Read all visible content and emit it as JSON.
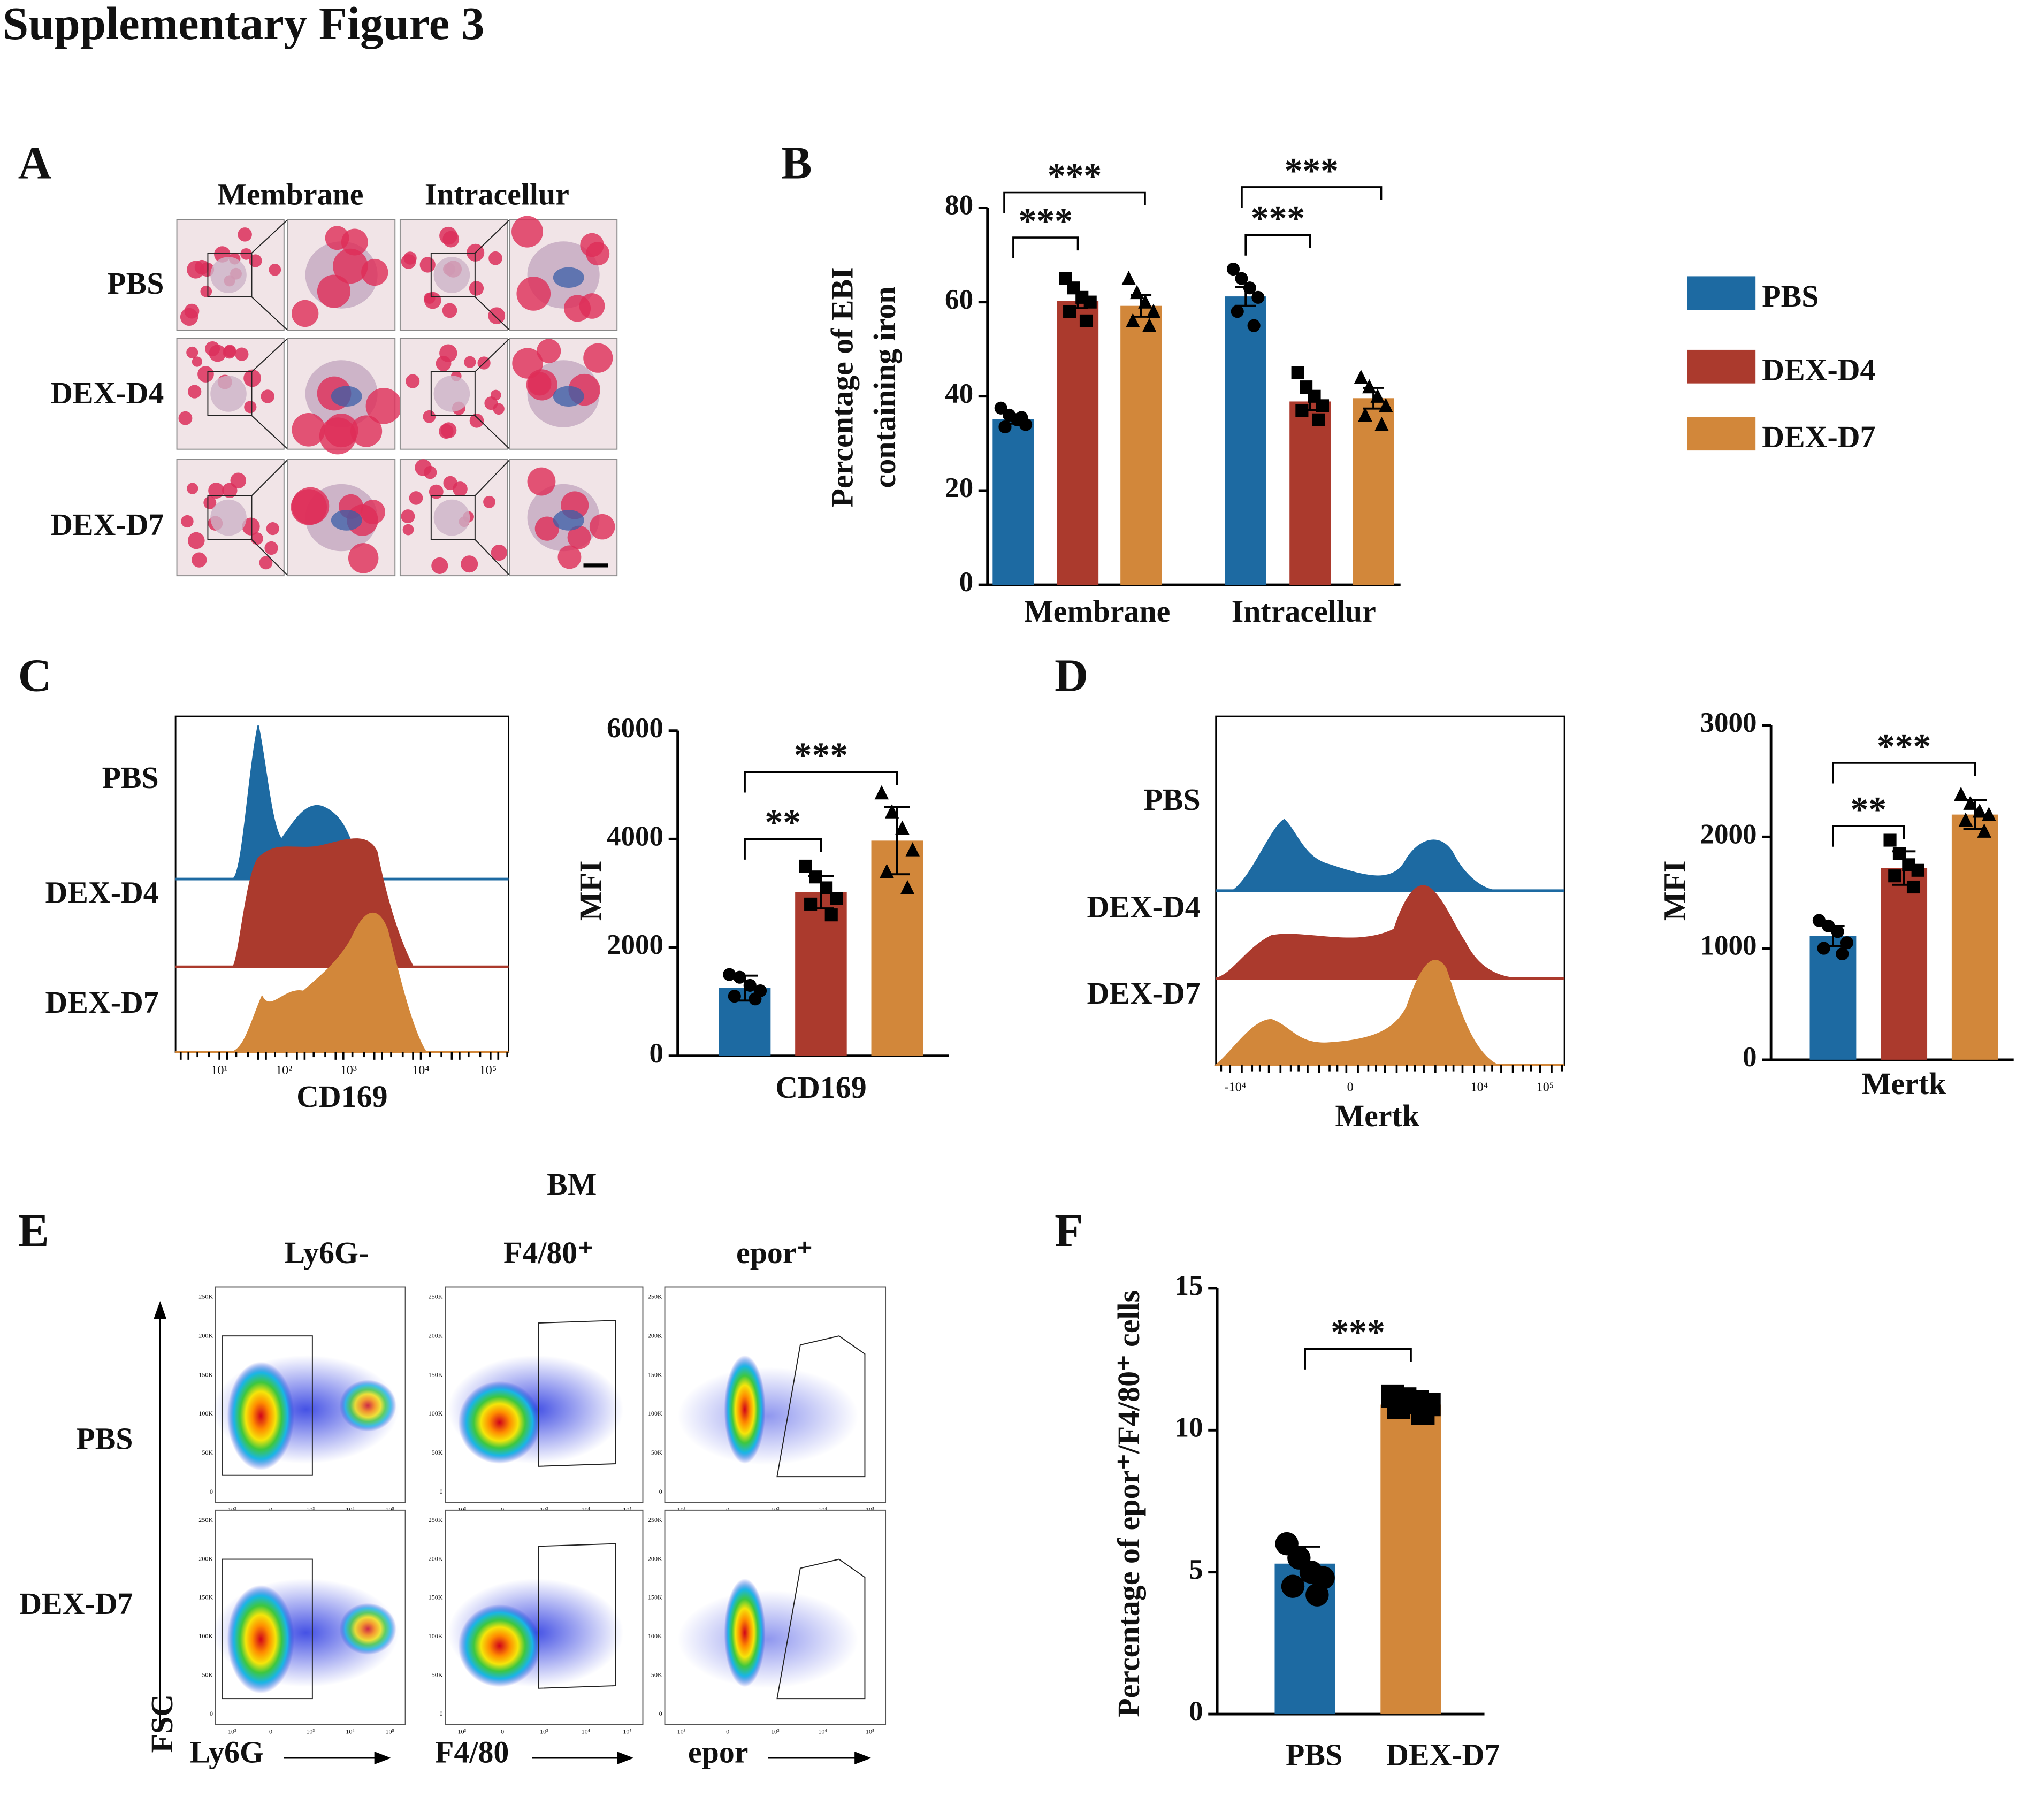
{
  "title": "Supplementary Figure 3",
  "panel_labels": [
    "A",
    "B",
    "C",
    "D",
    "E",
    "F"
  ],
  "panel_a": {
    "columns": [
      "Membrane",
      "Intracellur"
    ],
    "rows": [
      "PBS",
      "DEX-D4",
      "DEX-D7"
    ]
  },
  "panel_c_histogram": {
    "groups": [
      "PBS",
      "DEX-D4",
      "DEX-D7"
    ],
    "xticks": [
      "10¹",
      "10²",
      "10³",
      "10⁴",
      "10⁵"
    ],
    "xlabel": "CD169"
  },
  "panel_d_histogram": {
    "groups": [
      "PBS",
      "DEX-D4",
      "DEX-D7"
    ],
    "xticks": [
      "-10⁴",
      "0",
      "10⁴",
      "10⁵"
    ],
    "xlabel": "Mertk"
  },
  "panel_e": {
    "title": "BM",
    "columns": [
      "Ly6G-",
      "F4/80⁺",
      "epor⁺"
    ],
    "rows": [
      "PBS",
      "DEX-D7"
    ],
    "y_axis": "FSC",
    "x_labels": [
      "Ly6G",
      "F4/80",
      "epor"
    ],
    "plot_yticks": [
      "250K",
      "200K",
      "150K",
      "100K",
      "50K",
      "0"
    ],
    "plot_xticks": [
      "-10³",
      "0",
      "10³",
      "10⁴",
      "10⁵"
    ]
  },
  "chart_data": [
    {
      "type": "bar",
      "ylabel": [
        "Percentage of EBI",
        "containing iron"
      ],
      "categories": [
        "Membrane",
        "Intracellur"
      ],
      "series": [
        {
          "name": "PBS",
          "color": "#1d6aa2",
          "values": [
            35.2,
            61.2
          ],
          "errors": [
            1.0,
            2.0
          ],
          "points": [
            [
              37.5,
              36,
              35,
              34,
              33.5,
              35.5
            ],
            [
              67,
              65,
              63,
              61,
              58,
              55
            ]
          ]
        },
        {
          "name": "DEX-D4",
          "color": "#ab3a2d",
          "values": [
            60.3,
            38.9
          ],
          "errors": [
            1.6,
            1.8
          ],
          "points": [
            [
              65,
              63,
              61,
              60,
              58,
              56
            ],
            [
              45,
              42,
              40,
              38,
              37,
              35
            ]
          ]
        },
        {
          "name": "DEX-D7",
          "color": "#d2873a",
          "values": [
            59.2,
            39.6
          ],
          "errors": [
            2.3,
            2.2
          ],
          "points": [
            [
              65,
              62,
              60,
              58,
              56,
              55
            ],
            [
              44,
              42,
              40,
              38,
              36,
              34
            ]
          ]
        }
      ],
      "ylim": [
        0,
        80
      ],
      "yticks": [
        0,
        20,
        40,
        60,
        80
      ],
      "annotations": [
        "***",
        "***",
        "***",
        "***"
      ],
      "legend": "right"
    },
    {
      "type": "bar",
      "ylabel": [
        "MFI"
      ],
      "xlabel": "CD169",
      "categories": [
        null,
        null,
        null
      ],
      "values": [
        1250,
        3020,
        3970
      ],
      "errors": [
        230,
        300,
        620
      ],
      "colors": [
        "#1d6aa2",
        "#ab3a2d",
        "#d2873a"
      ],
      "points": [
        [
          1500,
          1450,
          1300,
          1200,
          1100,
          1050
        ],
        [
          3500,
          3300,
          3100,
          2900,
          2800,
          2600
        ],
        [
          4850,
          4500,
          4200,
          3800,
          3400,
          3100
        ]
      ],
      "ylim": [
        0,
        6000
      ],
      "yticks": [
        0,
        2000,
        4000,
        6000
      ],
      "annotations": [
        "**",
        "***"
      ]
    },
    {
      "type": "bar",
      "ylabel": [
        "MFI"
      ],
      "xlabel": "Mertk",
      "categories": [
        null,
        null,
        null
      ],
      "values": [
        1110,
        1720,
        2200
      ],
      "errors": [
        90,
        150,
        130
      ],
      "colors": [
        "#1d6aa2",
        "#ab3a2d",
        "#d2873a"
      ],
      "points": [
        [
          1250,
          1200,
          1150,
          1050,
          1000,
          950
        ],
        [
          1970,
          1850,
          1750,
          1700,
          1650,
          1550
        ],
        [
          2380,
          2300,
          2230,
          2200,
          2150,
          2050
        ]
      ],
      "ylim": [
        0,
        3000
      ],
      "yticks": [
        0,
        1000,
        2000,
        3000
      ],
      "annotations": [
        "**",
        "***"
      ]
    },
    {
      "type": "bar",
      "ylabel": [
        "Percentage of epor⁺/F4/80⁺ cells"
      ],
      "categories": [
        "PBS",
        "DEX-D7"
      ],
      "values": [
        5.3,
        10.9
      ],
      "errors": [
        0.6,
        0.3
      ],
      "colors": [
        "#1d6aa2",
        "#d2873a"
      ],
      "points": [
        [
          6,
          5.5,
          5,
          4.8,
          4.5,
          4.2
        ],
        [
          11.2,
          11.1,
          11,
          10.9,
          10.8,
          10.6
        ]
      ],
      "ylim": [
        0,
        15
      ],
      "yticks": [
        0,
        5,
        10,
        15
      ],
      "annotations": [
        "***"
      ]
    }
  ]
}
